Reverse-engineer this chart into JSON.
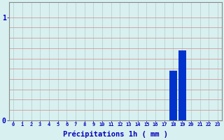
{
  "hours": [
    0,
    1,
    2,
    3,
    4,
    5,
    6,
    7,
    8,
    9,
    10,
    11,
    12,
    13,
    14,
    15,
    16,
    17,
    18,
    19,
    20,
    21,
    22,
    23
  ],
  "values": [
    0,
    0,
    0,
    0,
    0,
    0,
    0,
    0,
    0,
    0,
    0,
    0,
    0,
    0,
    0,
    0,
    0,
    0,
    0.48,
    0.68,
    0,
    0,
    0,
    0
  ],
  "bar_color": "#0033cc",
  "background_color": "#d8f0f0",
  "grid_color_h": "#d08888",
  "grid_color_v": "#b8cccc",
  "xlabel": "Précipitations 1h ( mm )",
  "xlabel_color": "#0000bb",
  "xlabel_fontsize": 7.5,
  "tick_color": "#0000bb",
  "axis_color": "#888888",
  "yticks": [
    0,
    1
  ],
  "ytick_labels": [
    "0",
    "1"
  ],
  "ylim": [
    0,
    1.15
  ],
  "xlim": [
    -0.5,
    23.5
  ],
  "h_gridlines": [
    0.1,
    0.2,
    0.3,
    0.4,
    0.5,
    0.6,
    0.7,
    0.8,
    0.9,
    1.0
  ],
  "figwidth": 3.2,
  "figheight": 2.0
}
